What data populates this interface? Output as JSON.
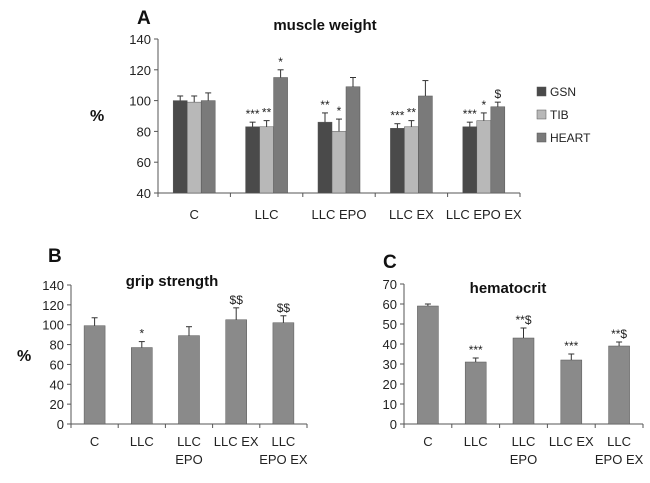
{
  "colors": {
    "GSN": "#4a4a4a",
    "TIB": "#b8b8b8",
    "HEART": "#7a7a7a",
    "single": "#8a8a8a"
  },
  "chart_data": [
    {
      "panel": "A",
      "type": "bar",
      "title": "muscle weight",
      "ylabel": "%",
      "ylim": [
        40,
        140
      ],
      "yticks": [
        40,
        60,
        80,
        100,
        120,
        140
      ],
      "categories": [
        "C",
        "LLC",
        "LLC EPO",
        "LLC EX",
        "LLC EPO EX"
      ],
      "legend_position": "right",
      "series": [
        {
          "name": "GSN",
          "values": [
            100,
            83,
            86,
            82,
            83
          ],
          "errors": [
            3,
            3,
            6,
            3,
            3
          ],
          "sig": [
            "",
            "***",
            "**",
            "***",
            "***"
          ]
        },
        {
          "name": "TIB",
          "values": [
            99,
            83,
            80,
            83,
            87
          ],
          "errors": [
            4,
            4,
            8,
            4,
            5
          ],
          "sig": [
            "",
            "**",
            "*",
            "**",
            "*"
          ]
        },
        {
          "name": "HEART",
          "values": [
            100,
            115,
            109,
            103,
            96
          ],
          "errors": [
            5,
            5,
            6,
            10,
            3
          ],
          "sig": [
            "",
            "*",
            "",
            "",
            "$"
          ]
        }
      ]
    },
    {
      "panel": "B",
      "type": "bar",
      "title": "grip strength",
      "ylabel": "%",
      "ylim": [
        0,
        140
      ],
      "yticks": [
        0,
        20,
        40,
        60,
        80,
        100,
        120,
        140
      ],
      "categories": [
        [
          "C"
        ],
        [
          "LLC"
        ],
        [
          "LLC",
          "EPO"
        ],
        [
          "LLC EX"
        ],
        [
          "LLC",
          "EPO EX"
        ]
      ],
      "series": [
        {
          "values": [
            99,
            77,
            89,
            105,
            102
          ],
          "errors": [
            8,
            6,
            9,
            12,
            7
          ],
          "sig": [
            "",
            "*",
            "",
            "$$",
            "$$"
          ]
        }
      ]
    },
    {
      "panel": "C",
      "type": "bar",
      "title": "hematocrit",
      "ylabel": "",
      "ylim": [
        0,
        70
      ],
      "yticks": [
        0,
        10,
        20,
        30,
        40,
        50,
        60,
        70
      ],
      "categories": [
        [
          "C"
        ],
        [
          "LLC"
        ],
        [
          "LLC",
          "EPO"
        ],
        [
          "LLC EX"
        ],
        [
          "LLC",
          "EPO EX"
        ]
      ],
      "series": [
        {
          "values": [
            59,
            31,
            43,
            32,
            39
          ],
          "errors": [
            1,
            2,
            5,
            3,
            2
          ],
          "sig": [
            "",
            "***",
            "**$",
            "***",
            "**$"
          ]
        }
      ]
    }
  ]
}
